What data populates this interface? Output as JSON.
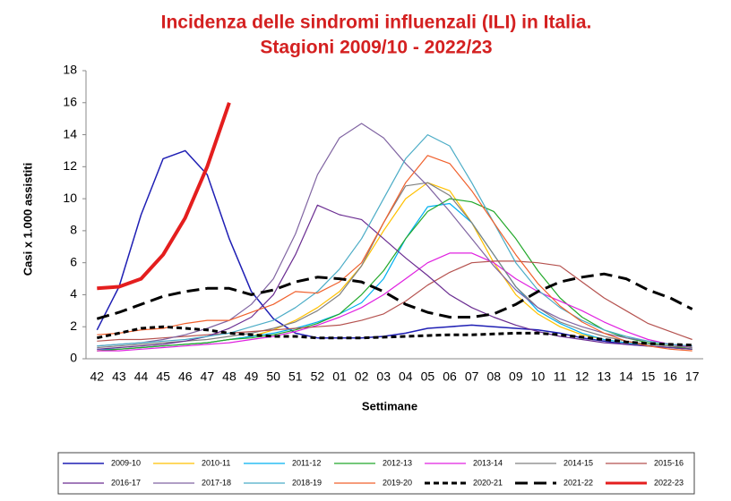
{
  "chart_data": {
    "type": "line",
    "title": "Incidenza delle sindromi influenzali (ILI) in Italia.",
    "subtitle": "Stagioni 2009/10 - 2022/23",
    "y_label": "Casi x 1.000 assistiti",
    "x_label": "Settimane",
    "categories": [
      "42",
      "43",
      "44",
      "45",
      "46",
      "47",
      "48",
      "49",
      "50",
      "51",
      "52",
      "01",
      "02",
      "03",
      "04",
      "05",
      "06",
      "07",
      "08",
      "09",
      "10",
      "11",
      "12",
      "13",
      "14",
      "15",
      "16",
      "17"
    ],
    "ylim": [
      0,
      18
    ],
    "yticks": [
      0,
      2,
      4,
      6,
      8,
      10,
      12,
      14,
      16,
      18
    ],
    "grid": false,
    "series": [
      {
        "name": "2009-10",
        "color": "#1f1fb4",
        "width": 1.5,
        "dash": "solid",
        "values": [
          1.8,
          4.5,
          9,
          12.5,
          13,
          11.5,
          7.5,
          4.2,
          2.5,
          1.6,
          1.3,
          1.3,
          1.3,
          1.4,
          1.6,
          1.9,
          2.0,
          2.1,
          2.0,
          1.9,
          1.8,
          1.6,
          1.3,
          1.1,
          0.9,
          0.8,
          0.7,
          0.6
        ]
      },
      {
        "name": "2010-11",
        "color": "#ffc000",
        "width": 1.2,
        "dash": "solid",
        "values": [
          0.5,
          0.6,
          0.7,
          0.8,
          0.9,
          1.0,
          1.2,
          1.4,
          1.8,
          2.4,
          3.2,
          4.2,
          5.8,
          8,
          10,
          11,
          10.5,
          8.5,
          6,
          4,
          2.8,
          2,
          1.5,
          1.2,
          1,
          0.8,
          0.7,
          0.6
        ]
      },
      {
        "name": "2011-12",
        "color": "#00b0f0",
        "width": 1.2,
        "dash": "solid",
        "values": [
          0.6,
          0.6,
          0.7,
          0.8,
          0.9,
          1.0,
          1.2,
          1.4,
          1.6,
          1.9,
          2.3,
          2.8,
          3.5,
          5,
          7.5,
          9.5,
          9.7,
          8.5,
          6.5,
          4.5,
          3,
          2.2,
          1.6,
          1.2,
          1,
          0.8,
          0.7,
          0.6
        ]
      },
      {
        "name": "2012-13",
        "color": "#22a82a",
        "width": 1.2,
        "dash": "solid",
        "values": [
          0.5,
          0.6,
          0.7,
          0.8,
          0.9,
          1.0,
          1.2,
          1.3,
          1.5,
          1.8,
          2.2,
          2.8,
          4,
          5.5,
          7.5,
          9.2,
          10,
          9.8,
          9.2,
          7.5,
          5.5,
          3.8,
          2.6,
          1.8,
          1.3,
          1,
          0.8,
          0.6
        ]
      },
      {
        "name": "2013-14",
        "color": "#e020e0",
        "width": 1.2,
        "dash": "solid",
        "values": [
          0.5,
          0.5,
          0.6,
          0.7,
          0.8,
          0.9,
          1.0,
          1.2,
          1.4,
          1.7,
          2.1,
          2.6,
          3.2,
          4,
          5,
          6,
          6.6,
          6.6,
          6,
          5,
          4.2,
          3.6,
          3,
          2.3,
          1.7,
          1.2,
          0.9,
          0.7
        ]
      },
      {
        "name": "2014-15",
        "color": "#808080",
        "width": 1.2,
        "dash": "solid",
        "values": [
          0.7,
          0.8,
          0.9,
          1.0,
          1.1,
          1.2,
          1.4,
          1.6,
          1.9,
          2.3,
          3,
          4,
          5.8,
          8.5,
          10.8,
          11,
          10.2,
          8.5,
          6.5,
          4.5,
          3.2,
          2.3,
          1.8,
          1.4,
          1.1,
          0.9,
          0.8,
          0.7
        ]
      },
      {
        "name": "2015-16",
        "color": "#b5524f",
        "width": 1.2,
        "dash": "solid",
        "values": [
          1.1,
          1.2,
          1.2,
          1.3,
          1.4,
          1.5,
          1.6,
          1.7,
          1.8,
          1.9,
          2.0,
          2.1,
          2.4,
          2.8,
          3.6,
          4.6,
          5.4,
          6.0,
          6.1,
          6.1,
          6.0,
          5.8,
          4.8,
          3.8,
          3,
          2.2,
          1.7,
          1.2
        ]
      },
      {
        "name": "2016-17",
        "color": "#6a2c91",
        "width": 1.2,
        "dash": "solid",
        "values": [
          0.6,
          0.7,
          0.8,
          0.9,
          1.1,
          1.4,
          1.9,
          2.6,
          4,
          6.5,
          9.6,
          9,
          8.7,
          7.5,
          6.3,
          5.2,
          4,
          3.2,
          2.6,
          2.1,
          1.7,
          1.4,
          1.2,
          1,
          0.9,
          0.8,
          0.7,
          0.6
        ]
      },
      {
        "name": "2017-18",
        "color": "#8064a2",
        "width": 1.2,
        "dash": "solid",
        "values": [
          0.8,
          0.9,
          1,
          1.2,
          1.5,
          1.9,
          2.4,
          3.4,
          5,
          7.8,
          11.5,
          13.8,
          14.7,
          13.8,
          12.2,
          10.8,
          9.2,
          7.5,
          5.8,
          4.3,
          3.2,
          2.5,
          2,
          1.6,
          1.3,
          1.1,
          0.9,
          0.8
        ]
      },
      {
        "name": "2018-19",
        "color": "#4bacc6",
        "width": 1.2,
        "dash": "solid",
        "values": [
          0.8,
          0.9,
          1,
          1.1,
          1.2,
          1.4,
          1.6,
          2,
          2.4,
          3.2,
          4.2,
          5.6,
          7.5,
          10,
          12.5,
          14,
          13.3,
          11,
          8.5,
          6,
          4.3,
          3.2,
          2.4,
          1.8,
          1.4,
          1.1,
          0.9,
          0.8
        ]
      },
      {
        "name": "2019-20",
        "color": "#f0602c",
        "width": 1.2,
        "dash": "solid",
        "values": [
          1.5,
          1.6,
          1.8,
          1.9,
          2.2,
          2.4,
          2.4,
          2.9,
          3.4,
          4.2,
          4.1,
          4.8,
          6,
          8.5,
          11,
          12.7,
          12.2,
          10.5,
          8.5,
          6.5,
          4.7,
          3.3,
          2.3,
          1.6,
          1.1,
          0.8,
          0.6,
          0.5
        ]
      },
      {
        "name": "2020-21",
        "color": "#000000",
        "width": 3,
        "dash": "short",
        "values": [
          1.3,
          1.6,
          1.9,
          2.0,
          1.9,
          1.8,
          1.6,
          1.5,
          1.4,
          1.4,
          1.3,
          1.3,
          1.3,
          1.35,
          1.4,
          1.45,
          1.5,
          1.5,
          1.55,
          1.6,
          1.6,
          1.5,
          1.35,
          1.2,
          1.05,
          0.95,
          0.9,
          0.85
        ]
      },
      {
        "name": "2021-22",
        "color": "#000000",
        "width": 3,
        "dash": "long",
        "values": [
          2.5,
          2.9,
          3.4,
          3.9,
          4.2,
          4.4,
          4.4,
          4.0,
          4.3,
          4.8,
          5.1,
          5.0,
          4.8,
          4.2,
          3.4,
          2.9,
          2.6,
          2.6,
          2.8,
          3.4,
          4.2,
          4.8,
          5.1,
          5.3,
          5.0,
          4.3,
          3.8,
          3.1
        ]
      },
      {
        "name": "2022-23",
        "color": "#e41e1e",
        "width": 4,
        "dash": "solid",
        "values": [
          4.4,
          4.5,
          5,
          6.5,
          8.8,
          12,
          16,
          null,
          null,
          null,
          null,
          null,
          null,
          null,
          null,
          null,
          null,
          null,
          null,
          null,
          null,
          null,
          null,
          null,
          null,
          null,
          null,
          null
        ]
      }
    ]
  }
}
